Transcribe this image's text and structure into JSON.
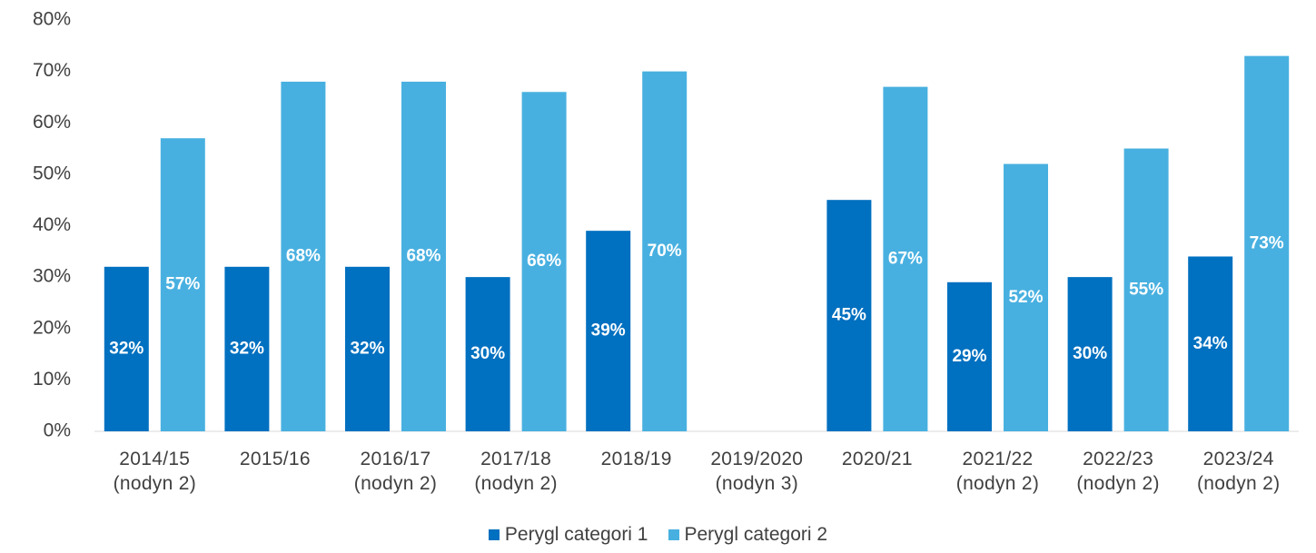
{
  "chart_data": {
    "type": "bar",
    "categories": [
      "2014/15\n(nodyn 2)",
      "2015/16",
      "2016/17\n(nodyn 2)",
      "2017/18\n(nodyn 2)",
      "2018/19",
      "2019/2020\n(nodyn 3)",
      "2020/21",
      "2021/22\n(nodyn 2)",
      "2022/23\n(nodyn 2)",
      "2023/24\n(nodyn 2)"
    ],
    "series": [
      {
        "name": "Perygl categori 1",
        "color": "#0070c0",
        "values": [
          32,
          32,
          32,
          30,
          39,
          null,
          45,
          29,
          30,
          34
        ],
        "value_labels": [
          "32%",
          "32%",
          "32%",
          "30%",
          "39%",
          null,
          "45%",
          "29%",
          "30%",
          "34%"
        ]
      },
      {
        "name": "Perygl categori 2",
        "color": "#48b0e0",
        "values": [
          57,
          68,
          68,
          66,
          70,
          null,
          67,
          52,
          55,
          73
        ],
        "value_labels": [
          "57%",
          "68%",
          "68%",
          "66%",
          "70%",
          null,
          "67%",
          "52%",
          "55%",
          "73%"
        ]
      }
    ],
    "ylim": [
      0,
      80
    ],
    "yticks": [
      {
        "value": 0,
        "label": "0%"
      },
      {
        "value": 10,
        "label": "10%"
      },
      {
        "value": 20,
        "label": "20%"
      },
      {
        "value": 30,
        "label": "30%"
      },
      {
        "value": 40,
        "label": "40%"
      },
      {
        "value": 50,
        "label": "50%"
      },
      {
        "value": 60,
        "label": "60%"
      },
      {
        "value": 70,
        "label": "70%"
      },
      {
        "value": 80,
        "label": "80%"
      }
    ],
    "legend": "bottom"
  }
}
